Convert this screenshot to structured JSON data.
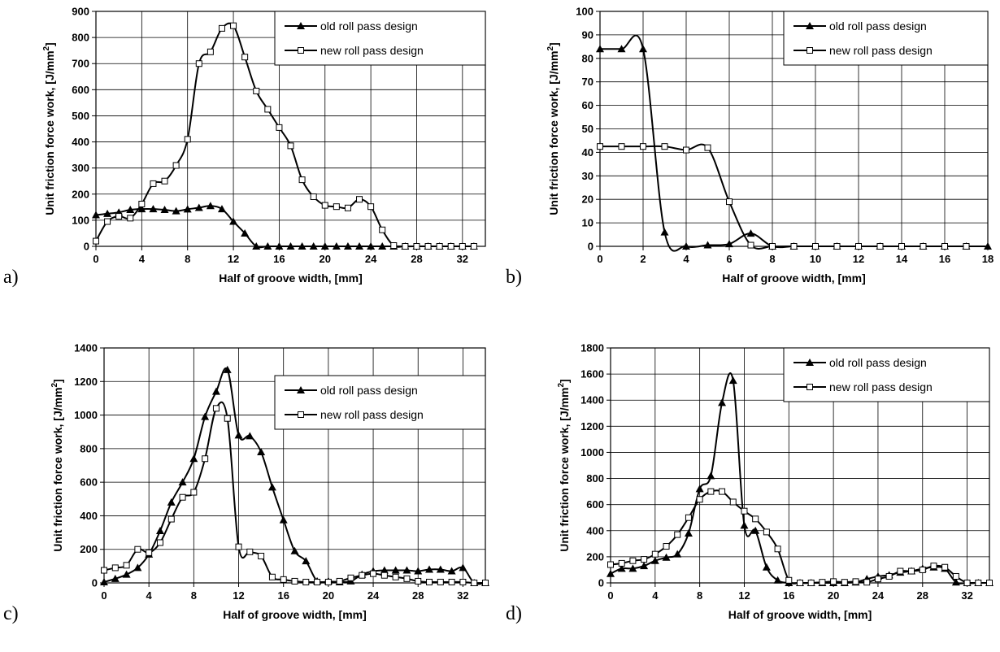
{
  "chart_data": [
    {
      "type": "line",
      "panel_label": "a)",
      "xlabel": "Half of groove width, [mm]",
      "ylabel": "Unit friction force work, [J/mm",
      "ylabel_sup": "2",
      "ylabel_end": "]",
      "xlim": [
        0,
        34
      ],
      "ylim": [
        0,
        900
      ],
      "xticks": [
        0,
        4,
        8,
        12,
        16,
        20,
        24,
        28,
        32
      ],
      "yticks": [
        0,
        100,
        200,
        300,
        400,
        500,
        600,
        700,
        800,
        900
      ],
      "grid": true,
      "legend_position": "top-right",
      "series": [
        {
          "name": "old roll pass design",
          "marker": "triangle",
          "x": [
            0,
            1,
            2,
            3,
            4,
            5,
            6,
            7,
            8,
            9,
            10,
            11,
            12,
            13,
            14,
            15,
            16,
            17,
            18,
            19,
            20,
            21,
            22,
            23,
            24,
            25,
            26,
            27,
            28,
            29,
            30,
            31,
            32,
            33
          ],
          "y": [
            120,
            125,
            130,
            140,
            143,
            143,
            140,
            135,
            142,
            148,
            155,
            143,
            95,
            50,
            0,
            0,
            0,
            0,
            0,
            0,
            0,
            0,
            0,
            0,
            0,
            0,
            0,
            0,
            0,
            0,
            0,
            0,
            0,
            0
          ]
        },
        {
          "name": "new roll pass design",
          "marker": "square",
          "x": [
            0,
            1,
            2,
            3,
            4,
            5,
            6,
            7,
            8,
            9,
            10,
            11,
            12,
            13,
            14,
            15,
            16,
            17,
            18,
            19,
            20,
            21,
            22,
            23,
            24,
            25,
            26,
            27,
            28,
            29,
            30,
            31,
            32,
            33
          ],
          "y": [
            20,
            95,
            115,
            108,
            162,
            240,
            250,
            310,
            410,
            700,
            745,
            835,
            845,
            725,
            595,
            525,
            455,
            385,
            255,
            190,
            157,
            152,
            147,
            180,
            152,
            63,
            3,
            0,
            0,
            0,
            0,
            0,
            0,
            0
          ]
        }
      ]
    },
    {
      "type": "line",
      "panel_label": "b)",
      "xlabel": "Half of groove width, [mm]",
      "ylabel": "Unit friction force work, [J/mm",
      "ylabel_sup": "2",
      "ylabel_end": "]",
      "xlim": [
        0,
        18
      ],
      "ylim": [
        0,
        100
      ],
      "xticks": [
        0,
        2,
        4,
        6,
        8,
        10,
        12,
        14,
        16,
        18
      ],
      "yticks": [
        0,
        10,
        20,
        30,
        40,
        50,
        60,
        70,
        80,
        90,
        100
      ],
      "grid": true,
      "legend_position": "top-right",
      "series": [
        {
          "name": "old roll pass design",
          "marker": "triangle",
          "x": [
            0,
            1,
            2,
            3,
            4,
            5,
            6,
            7,
            8,
            9,
            10,
            11,
            12,
            13,
            14,
            15,
            16,
            17,
            18
          ],
          "y": [
            84,
            84,
            84,
            6,
            0,
            0.5,
            1,
            5.5,
            0,
            0,
            0,
            0,
            0,
            0,
            0,
            0,
            0,
            0,
            0
          ]
        },
        {
          "name": "new roll pass design",
          "marker": "square",
          "x": [
            0,
            1,
            2,
            3,
            4,
            5,
            6,
            7,
            8,
            9,
            10,
            11,
            12,
            13,
            14,
            15,
            16,
            17
          ],
          "y": [
            42.5,
            42.5,
            42.5,
            42.5,
            41,
            42,
            19,
            0.5,
            0,
            0,
            0,
            0,
            0,
            0,
            0,
            0,
            0,
            0
          ]
        }
      ]
    },
    {
      "type": "line",
      "panel_label": "c)",
      "xlabel": "Half of groove width, [mm]",
      "ylabel": "Unit friction force work, [J/mm",
      "ylabel_sup": "2",
      "ylabel_end": "]",
      "xlim": [
        0,
        34
      ],
      "ylim": [
        0,
        1400
      ],
      "xticks": [
        0,
        4,
        8,
        12,
        16,
        20,
        24,
        28,
        32
      ],
      "yticks": [
        0,
        200,
        400,
        600,
        800,
        1000,
        1200,
        1400
      ],
      "grid": true,
      "legend_position": "top-right",
      "series": [
        {
          "name": "old roll pass design",
          "marker": "triangle",
          "x": [
            0,
            1,
            2,
            3,
            4,
            5,
            6,
            7,
            8,
            9,
            10,
            11,
            12,
            13,
            14,
            15,
            16,
            17,
            18,
            19,
            20,
            21,
            22,
            23,
            24,
            25,
            26,
            27,
            28,
            29,
            30,
            31,
            32,
            33,
            34
          ],
          "y": [
            5,
            25,
            50,
            90,
            170,
            310,
            480,
            600,
            740,
            990,
            1140,
            1270,
            880,
            875,
            780,
            570,
            375,
            190,
            130,
            10,
            10,
            5,
            10,
            50,
            70,
            75,
            75,
            75,
            70,
            80,
            80,
            70,
            90,
            0,
            0
          ]
        },
        {
          "name": "new roll pass design",
          "marker": "square",
          "x": [
            0,
            1,
            2,
            3,
            4,
            5,
            6,
            7,
            8,
            9,
            10,
            11,
            12,
            13,
            14,
            15,
            16,
            17,
            18,
            19,
            20,
            21,
            22,
            23,
            24,
            25,
            26,
            27,
            28,
            29,
            30,
            31,
            32,
            33,
            34
          ],
          "y": [
            75,
            90,
            105,
            200,
            180,
            240,
            380,
            510,
            540,
            740,
            1040,
            980,
            215,
            185,
            160,
            35,
            20,
            10,
            5,
            5,
            5,
            10,
            30,
            45,
            55,
            45,
            35,
            25,
            10,
            5,
            5,
            5,
            5,
            0,
            0
          ]
        }
      ]
    },
    {
      "type": "line",
      "panel_label": "d)",
      "xlabel": "Half of groove width, [mm]",
      "ylabel": "Unit friction force work, [J/mm",
      "ylabel_sup": "2",
      "ylabel_end": "]",
      "xlim": [
        0,
        34
      ],
      "ylim": [
        0,
        1800
      ],
      "xticks": [
        0,
        4,
        8,
        12,
        16,
        20,
        24,
        28,
        32
      ],
      "yticks": [
        0,
        200,
        400,
        600,
        800,
        1000,
        1200,
        1400,
        1600,
        1800
      ],
      "grid": true,
      "legend_position": "top-right",
      "series": [
        {
          "name": "old roll pass design",
          "marker": "triangle",
          "x": [
            0,
            1,
            2,
            3,
            4,
            5,
            6,
            7,
            8,
            9,
            10,
            11,
            12,
            13,
            14,
            15,
            16,
            17,
            18,
            19,
            20,
            21,
            22,
            23,
            24,
            25,
            26,
            27,
            28,
            29,
            30,
            31,
            32,
            33,
            34
          ],
          "y": [
            70,
            110,
            110,
            130,
            170,
            195,
            220,
            380,
            720,
            820,
            1380,
            1550,
            440,
            400,
            120,
            20,
            0,
            0,
            0,
            0,
            0,
            0,
            5,
            30,
            50,
            60,
            80,
            90,
            110,
            120,
            110,
            5,
            0,
            0,
            0
          ]
        },
        {
          "name": "new roll pass design",
          "marker": "square",
          "x": [
            0,
            1,
            2,
            3,
            4,
            5,
            6,
            7,
            8,
            9,
            10,
            11,
            12,
            13,
            14,
            15,
            16,
            17,
            18,
            19,
            20,
            21,
            22,
            23,
            24,
            25,
            26,
            27,
            28,
            29,
            30,
            31,
            32,
            33,
            34
          ],
          "y": [
            140,
            150,
            170,
            180,
            220,
            280,
            370,
            500,
            640,
            700,
            700,
            620,
            550,
            490,
            390,
            260,
            20,
            0,
            0,
            5,
            10,
            5,
            10,
            5,
            30,
            50,
            90,
            90,
            100,
            130,
            120,
            50,
            0,
            0,
            0
          ]
        }
      ]
    }
  ]
}
